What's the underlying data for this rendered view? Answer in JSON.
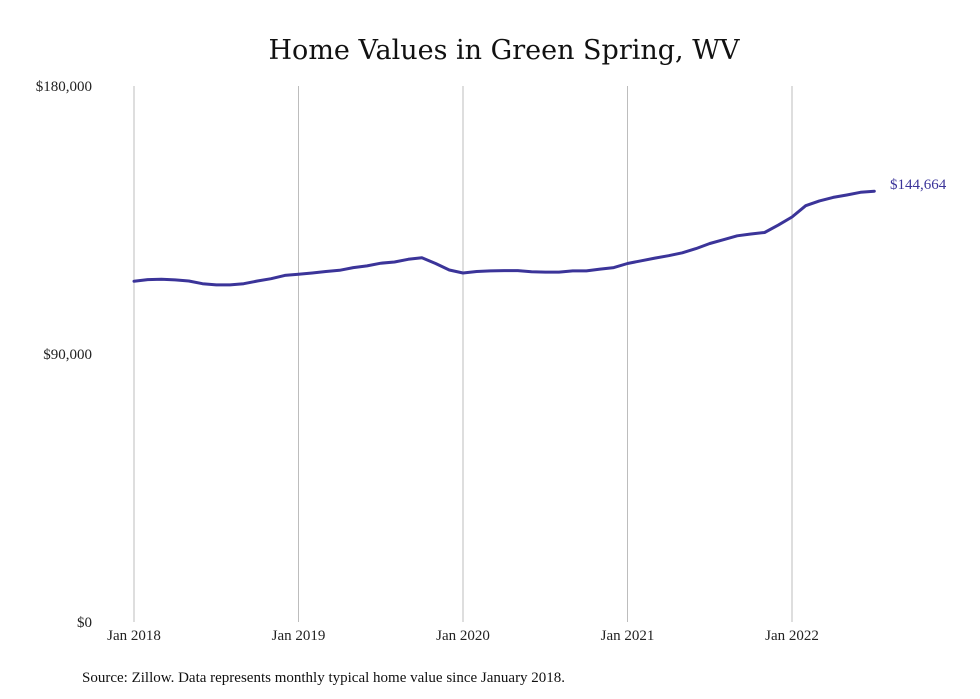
{
  "chart_data": {
    "type": "line",
    "title": "Home Values in Green Spring, WV",
    "xlabel": "",
    "ylabel": "",
    "ylim": [
      0,
      180000
    ],
    "y_ticks": [
      {
        "value": 0,
        "label": "$0"
      },
      {
        "value": 90000,
        "label": "$90,000"
      },
      {
        "value": 180000,
        "label": "$180,000"
      }
    ],
    "x_ticks": [
      {
        "value": "2018-01",
        "label": "Jan 2018"
      },
      {
        "value": "2019-01",
        "label": "Jan 2019"
      },
      {
        "value": "2020-01",
        "label": "Jan 2020"
      },
      {
        "value": "2021-01",
        "label": "Jan 2021"
      },
      {
        "value": "2022-01",
        "label": "Jan 2022"
      }
    ],
    "grid": {
      "vertical": true,
      "horizontal": false
    },
    "legend": "none",
    "end_label": "$144,664",
    "series": [
      {
        "color": "#3b3499",
        "x": [
          "2018-01",
          "2018-02",
          "2018-03",
          "2018-04",
          "2018-05",
          "2018-06",
          "2018-07",
          "2018-08",
          "2018-09",
          "2018-10",
          "2018-11",
          "2018-12",
          "2019-01",
          "2019-02",
          "2019-03",
          "2019-04",
          "2019-05",
          "2019-06",
          "2019-07",
          "2019-08",
          "2019-09",
          "2019-10",
          "2019-11",
          "2019-12",
          "2020-01",
          "2020-02",
          "2020-03",
          "2020-04",
          "2020-05",
          "2020-06",
          "2020-07",
          "2020-08",
          "2020-09",
          "2020-10",
          "2020-11",
          "2020-12",
          "2021-01",
          "2021-02",
          "2021-03",
          "2021-04",
          "2021-05",
          "2021-06",
          "2021-07",
          "2021-08",
          "2021-09",
          "2021-10",
          "2021-11",
          "2021-12",
          "2022-01",
          "2022-02",
          "2022-03",
          "2022-04",
          "2022-05",
          "2022-06",
          "2022-07"
        ],
        "values": [
          114400,
          115000,
          115100,
          114900,
          114500,
          113600,
          113200,
          113200,
          113600,
          114500,
          115300,
          116400,
          116800,
          117200,
          117700,
          118100,
          119000,
          119600,
          120500,
          120900,
          121800,
          122300,
          120400,
          118200,
          117200,
          117700,
          117900,
          118000,
          118000,
          117600,
          117500,
          117500,
          117900,
          117900,
          118500,
          119000,
          120400,
          121300,
          122200,
          123000,
          124000,
          125400,
          127100,
          128400,
          129700,
          130300,
          130800,
          133300,
          136000,
          139800,
          141400,
          142600,
          143400,
          144300,
          144664
        ]
      }
    ]
  },
  "footer": {
    "source": "Source: Zillow. Data represents monthly typical home value since January 2018."
  }
}
